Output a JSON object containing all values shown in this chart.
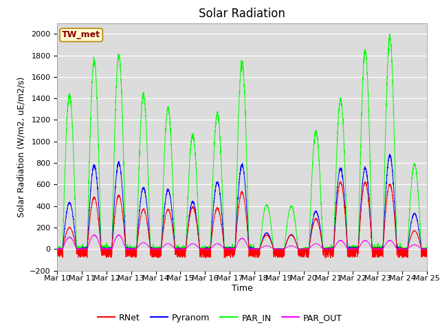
{
  "title": "Solar Radiation",
  "ylabel": "Solar Radiation (W/m2, uE/m2/s)",
  "xlabel": "Time",
  "ylim": [
    -200,
    2100
  ],
  "yticks": [
    -200,
    0,
    200,
    400,
    600,
    800,
    1000,
    1200,
    1400,
    1600,
    1800,
    2000
  ],
  "xtick_labels": [
    "Mar 10",
    "Mar 11",
    "Mar 12",
    "Mar 13",
    "Mar 14",
    "Mar 15",
    "Mar 16",
    "Mar 17",
    "Mar 18",
    "Mar 19",
    "Mar 20",
    "Mar 21",
    "Mar 22",
    "Mar 23",
    "Mar 24",
    "Mar 25"
  ],
  "annotation_text": "TW_met",
  "annotation_color": "#8B0000",
  "annotation_bg": "#FFFACD",
  "annotation_border": "#B8860B",
  "colors": {
    "RNet": "#FF0000",
    "Pyranom": "#0000FF",
    "PAR_IN": "#00FF00",
    "PAR_OUT": "#FF00FF"
  },
  "fig_bg": "#FFFFFF",
  "plot_bg": "#DCDCDC",
  "grid_color": "#FFFFFF",
  "title_fontsize": 12,
  "label_fontsize": 9,
  "tick_fontsize": 8,
  "par_in_peaks": [
    1430,
    1750,
    1800,
    1430,
    1310,
    1060,
    1260,
    1740,
    410,
    400,
    1090,
    1390,
    1840,
    1960,
    790
  ],
  "pyranom_peaks": [
    430,
    780,
    800,
    570,
    550,
    440,
    620,
    780,
    150,
    135,
    350,
    750,
    750,
    870,
    330
  ],
  "rnet_peaks": [
    200,
    480,
    500,
    370,
    370,
    390,
    380,
    530,
    130,
    130,
    280,
    620,
    620,
    600,
    170
  ],
  "par_out_peaks": [
    110,
    130,
    130,
    60,
    50,
    50,
    50,
    100,
    30,
    30,
    50,
    80,
    80,
    80,
    40
  ]
}
